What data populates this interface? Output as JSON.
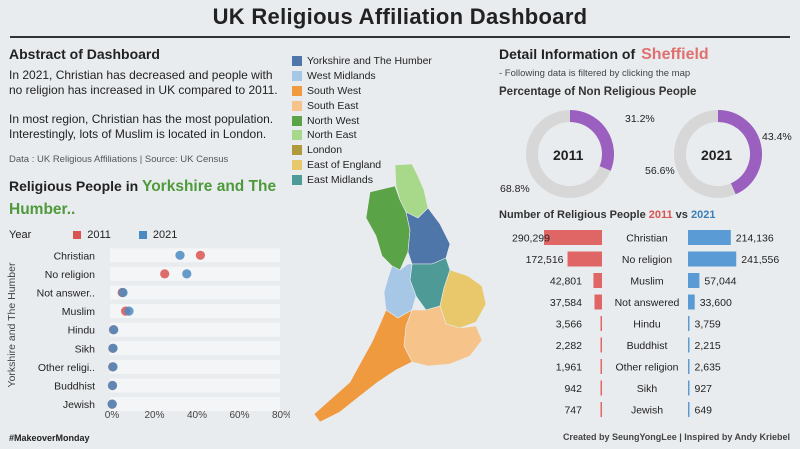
{
  "header": {
    "title": "UK Religious Affiliation Dashboard"
  },
  "abstract": {
    "heading": "Abstract of Dashboard",
    "para1": "In 2021, Christian has decreased  and people with no religion has increased in UK compared to 2011.",
    "para2": "In most region, Christian has the most population. Interestingly, lots of Muslim is located in London.",
    "source": "Data : UK Religious Affiliations  | Source: UK Census"
  },
  "religious_people": {
    "heading_prefix": "Religious People in ",
    "region": "Yorkshire and The Humber..",
    "legend_title": "Year",
    "legend": [
      {
        "label": "2011",
        "color": "#d9534f"
      },
      {
        "label": "2021",
        "color": "#4a8bc2"
      }
    ],
    "yaxis_label": "Yorkshire and The Humber"
  },
  "map_legend": [
    {
      "label": "Yorkshire and The Humber",
      "color": "#4f76a8"
    },
    {
      "label": "West Midlands",
      "color": "#a6c8e6"
    },
    {
      "label": "South West",
      "color": "#ef9a3e"
    },
    {
      "label": "South East",
      "color": "#f6c48a"
    },
    {
      "label": "North West",
      "color": "#5aa346"
    },
    {
      "label": "North East",
      "color": "#a8d98b"
    },
    {
      "label": "London",
      "color": "#b09a3c"
    },
    {
      "label": "East of England",
      "color": "#e9c86b"
    },
    {
      "label": "East Midlands",
      "color": "#4e9a96"
    }
  ],
  "detail": {
    "heading": "Detail Information of",
    "city": "Sheffield",
    "subtitle": "- Following data is filtered by clicking the map",
    "pct_heading": "Percentage of Non Religious People",
    "nr_heading_prefix": "Number of Religious People ",
    "nr_year1": "2011",
    "nr_vs": " vs ",
    "nr_year2": "2021",
    "donut_2011": {
      "year": "2011",
      "nonreligious_label": "31.2%",
      "religious_label": "68.8%",
      "nonreligious": 31.2
    },
    "donut_2021": {
      "year": "2021",
      "nonreligious_label": "43.4%",
      "religious_label": "56.6%",
      "nonreligious": 43.4
    }
  },
  "footer": {
    "left": "#MakeoverMonday",
    "right": "Created by SeungYongLee | Inspired by Andy Kriebel"
  },
  "chart_data": [
    {
      "type": "scatter",
      "title": "",
      "categories": [
        "Christian",
        "No religion",
        "Not answer..",
        "Muslim",
        "Hindu",
        "Sikh",
        "Other religi..",
        "Buddhist",
        "Jewish"
      ],
      "xlabel": "",
      "xticks": [
        "0%",
        "20%",
        "40%",
        "60%",
        "80%"
      ],
      "xlim": [
        0,
        100
      ],
      "series": [
        {
          "name": "2011",
          "color": "#d9534f",
          "values": [
            52,
            31,
            6,
            8,
            0.9,
            0.5,
            0.4,
            0.3,
            0.1
          ]
        },
        {
          "name": "2021",
          "color": "#4a8bc2",
          "values": [
            40,
            44,
            6.5,
            10,
            1.0,
            0.6,
            0.6,
            0.3,
            0.1
          ]
        }
      ]
    },
    {
      "type": "bar",
      "title": "Number of Religious People 2011 vs 2021",
      "categories": [
        "Christian",
        "No religion",
        "Muslim",
        "Not answered",
        "Hindu",
        "Buddhist",
        "Other religion",
        "Sikh",
        "Jewish"
      ],
      "series": [
        {
          "name": "2011",
          "color": "#e06666",
          "values": [
            290299,
            172516,
            42801,
            37584,
            3566,
            2282,
            1961,
            942,
            747
          ],
          "labels": [
            "290,299",
            "172,516",
            "42,801",
            "37,584",
            "3,566",
            "2,282",
            "1,961",
            "942",
            "747"
          ]
        },
        {
          "name": "2021",
          "color": "#5b9bd5",
          "values": [
            214136,
            241556,
            57044,
            33600,
            3759,
            2215,
            2635,
            927,
            649
          ],
          "labels": [
            "214,136",
            "241,556",
            "57,044",
            "33,600",
            "3,759",
            "2,215",
            "2,635",
            "927",
            "649"
          ]
        }
      ]
    }
  ]
}
